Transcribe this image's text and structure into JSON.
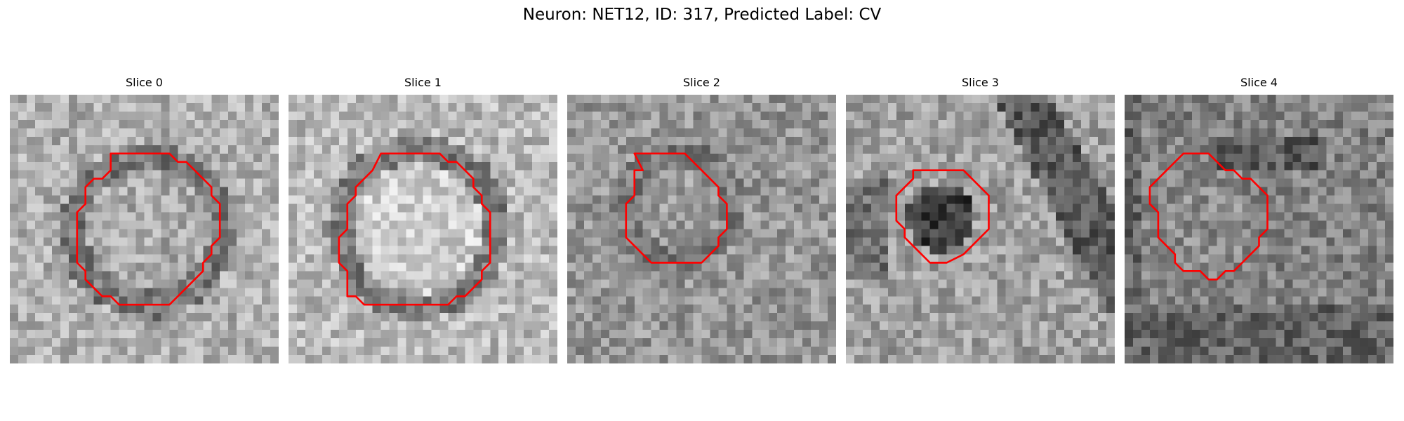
{
  "figure": {
    "title": "Neuron: NET12, ID: 317, Predicted Label: CV"
  },
  "contour_color": "#ff0000",
  "colormap": "gray",
  "panels": [
    {
      "title": "Slice 0",
      "contour": [
        [
          12,
          7
        ],
        [
          19,
          7
        ],
        [
          20,
          8
        ],
        [
          21,
          8
        ],
        [
          23,
          10
        ],
        [
          24,
          11
        ],
        [
          24,
          12
        ],
        [
          25,
          13
        ],
        [
          25,
          17
        ],
        [
          24,
          18
        ],
        [
          24,
          19
        ],
        [
          23,
          20
        ],
        [
          23,
          21
        ],
        [
          21,
          23
        ],
        [
          20,
          24
        ],
        [
          19,
          25
        ],
        [
          13,
          25
        ],
        [
          12,
          24
        ],
        [
          11,
          24
        ],
        [
          10,
          23
        ],
        [
          9,
          22
        ],
        [
          9,
          21
        ],
        [
          8,
          20
        ],
        [
          8,
          14
        ],
        [
          9,
          13
        ],
        [
          9,
          11
        ],
        [
          10,
          10
        ],
        [
          11,
          10
        ],
        [
          12,
          9
        ]
      ]
    },
    {
      "title": "Slice 1",
      "contour": [
        [
          11,
          7
        ],
        [
          18,
          7
        ],
        [
          19,
          8
        ],
        [
          20,
          8
        ],
        [
          21,
          9
        ],
        [
          22,
          10
        ],
        [
          22,
          11
        ],
        [
          23,
          12
        ],
        [
          23,
          13
        ],
        [
          24,
          14
        ],
        [
          24,
          20
        ],
        [
          23,
          21
        ],
        [
          23,
          22
        ],
        [
          22,
          23
        ],
        [
          21,
          24
        ],
        [
          20,
          24
        ],
        [
          19,
          25
        ],
        [
          9,
          25
        ],
        [
          8,
          24
        ],
        [
          7,
          24
        ],
        [
          7,
          21
        ],
        [
          6,
          20
        ],
        [
          6,
          17
        ],
        [
          7,
          16
        ],
        [
          7,
          13
        ],
        [
          8,
          12
        ],
        [
          8,
          11
        ],
        [
          9,
          10
        ],
        [
          10,
          9
        ]
      ]
    },
    {
      "title": "Slice 2",
      "contour": [
        [
          8,
          7
        ],
        [
          14,
          7
        ],
        [
          15,
          8
        ],
        [
          16,
          9
        ],
        [
          17,
          10
        ],
        [
          18,
          11
        ],
        [
          18,
          12
        ],
        [
          19,
          13
        ],
        [
          19,
          16
        ],
        [
          18,
          17
        ],
        [
          18,
          18
        ],
        [
          17,
          19
        ],
        [
          16,
          20
        ],
        [
          10,
          20
        ],
        [
          9,
          19
        ],
        [
          8,
          18
        ],
        [
          7,
          17
        ],
        [
          7,
          13
        ],
        [
          8,
          12
        ],
        [
          8,
          9
        ],
        [
          9,
          9
        ]
      ]
    },
    {
      "title": "Slice 3",
      "contour": [
        [
          8,
          9
        ],
        [
          14,
          9
        ],
        [
          15,
          10
        ],
        [
          16,
          11
        ],
        [
          17,
          12
        ],
        [
          17,
          16
        ],
        [
          16,
          17
        ],
        [
          15,
          18
        ],
        [
          14,
          19
        ],
        [
          12,
          20
        ],
        [
          10,
          20
        ],
        [
          9,
          19
        ],
        [
          8,
          18
        ],
        [
          7,
          17
        ],
        [
          7,
          16
        ],
        [
          6,
          15
        ],
        [
          6,
          12
        ],
        [
          7,
          11
        ],
        [
          8,
          10
        ]
      ]
    },
    {
      "title": "Slice 4",
      "contour": [
        [
          7,
          7
        ],
        [
          10,
          7
        ],
        [
          11,
          8
        ],
        [
          12,
          9
        ],
        [
          13,
          9
        ],
        [
          14,
          10
        ],
        [
          15,
          10
        ],
        [
          16,
          11
        ],
        [
          17,
          12
        ],
        [
          17,
          16
        ],
        [
          16,
          17
        ],
        [
          16,
          18
        ],
        [
          15,
          19
        ],
        [
          14,
          20
        ],
        [
          13,
          21
        ],
        [
          12,
          21
        ],
        [
          11,
          22
        ],
        [
          10,
          22
        ],
        [
          9,
          21
        ],
        [
          7,
          21
        ],
        [
          6,
          20
        ],
        [
          6,
          19
        ],
        [
          5,
          18
        ],
        [
          4,
          17
        ],
        [
          4,
          14
        ],
        [
          3,
          13
        ],
        [
          3,
          11
        ],
        [
          4,
          10
        ],
        [
          5,
          9
        ],
        [
          6,
          8
        ]
      ]
    }
  ]
}
